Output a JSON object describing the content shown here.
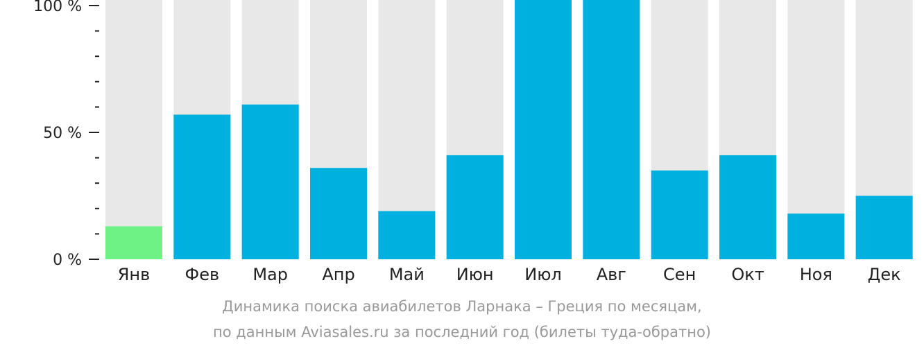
{
  "chart_data": {
    "type": "bar",
    "categories": [
      "Янв",
      "Фев",
      "Мар",
      "Апр",
      "Май",
      "Июн",
      "Июл",
      "Авг",
      "Сен",
      "Окт",
      "Ноя",
      "Дек"
    ],
    "values": [
      13,
      57,
      61,
      36,
      19,
      41,
      105,
      106,
      35,
      41,
      18,
      25
    ],
    "ylim": [
      0,
      100
    ],
    "y_ticks": [
      {
        "value": 100,
        "label": "100 %"
      },
      {
        "value": 50,
        "label": "50 %"
      },
      {
        "value": 0,
        "label": "0 %"
      }
    ],
    "minor_tick_step": 10,
    "highlight_index": 0,
    "grid": false,
    "colors": {
      "bar": "#00b0de",
      "highlight": "#6ef285",
      "background_bar": "#e8e8e8",
      "axis": "#222222"
    }
  },
  "caption": {
    "line1": "Динамика поиска авиабилетов Ларнака – Греция по месяцам,",
    "line2": "по данным Aviasales.ru за последний год (билеты туда-обратно)"
  }
}
